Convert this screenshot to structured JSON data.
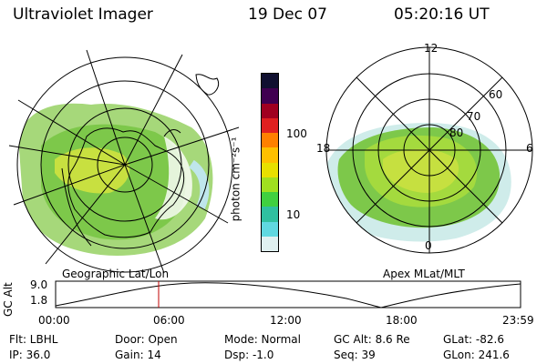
{
  "header": {
    "instrument": "Ultraviolet Imager",
    "date": "19 Dec 07",
    "time": "05:20:16 UT"
  },
  "left_map": {
    "label": "Geographic Lat/Lon"
  },
  "right_map": {
    "label": "Apex MLat/MLT",
    "mlt_labels": [
      "12",
      "18",
      "6",
      "0"
    ],
    "lat_labels": [
      "60",
      "70",
      "80"
    ]
  },
  "colorbar": {
    "unit_label": "photon cm⁻²s⁻¹",
    "ticks": [
      "100",
      "10"
    ],
    "colors": [
      "#101030",
      "#400050",
      "#a00020",
      "#e02020",
      "#ff8000",
      "#ffc000",
      "#e8e000",
      "#a0e020",
      "#40d040",
      "#30c0a0",
      "#60d8e0",
      "#e0f0f0"
    ]
  },
  "altitude_plot": {
    "ylabel": "GC Alt",
    "yticks": [
      "9.0",
      "1.8"
    ],
    "xticks": [
      "00:00",
      "06:00",
      "12:00",
      "18:00",
      "23:59"
    ],
    "cursor_color": "#c00000",
    "cursor_time": "05:20"
  },
  "footer": {
    "filter": "Flt: LBHL",
    "ip": "IP: 36.0",
    "door": "Door: Open",
    "gain": "Gain: 14",
    "mode": "Mode: Normal",
    "dsp": "Dsp:   -1.0",
    "gc_alt": "GC Alt: 8.6 Re",
    "seq": "Seq: 39",
    "glat": "GLat: -82.6",
    "glon": "GLon: 241.6"
  }
}
